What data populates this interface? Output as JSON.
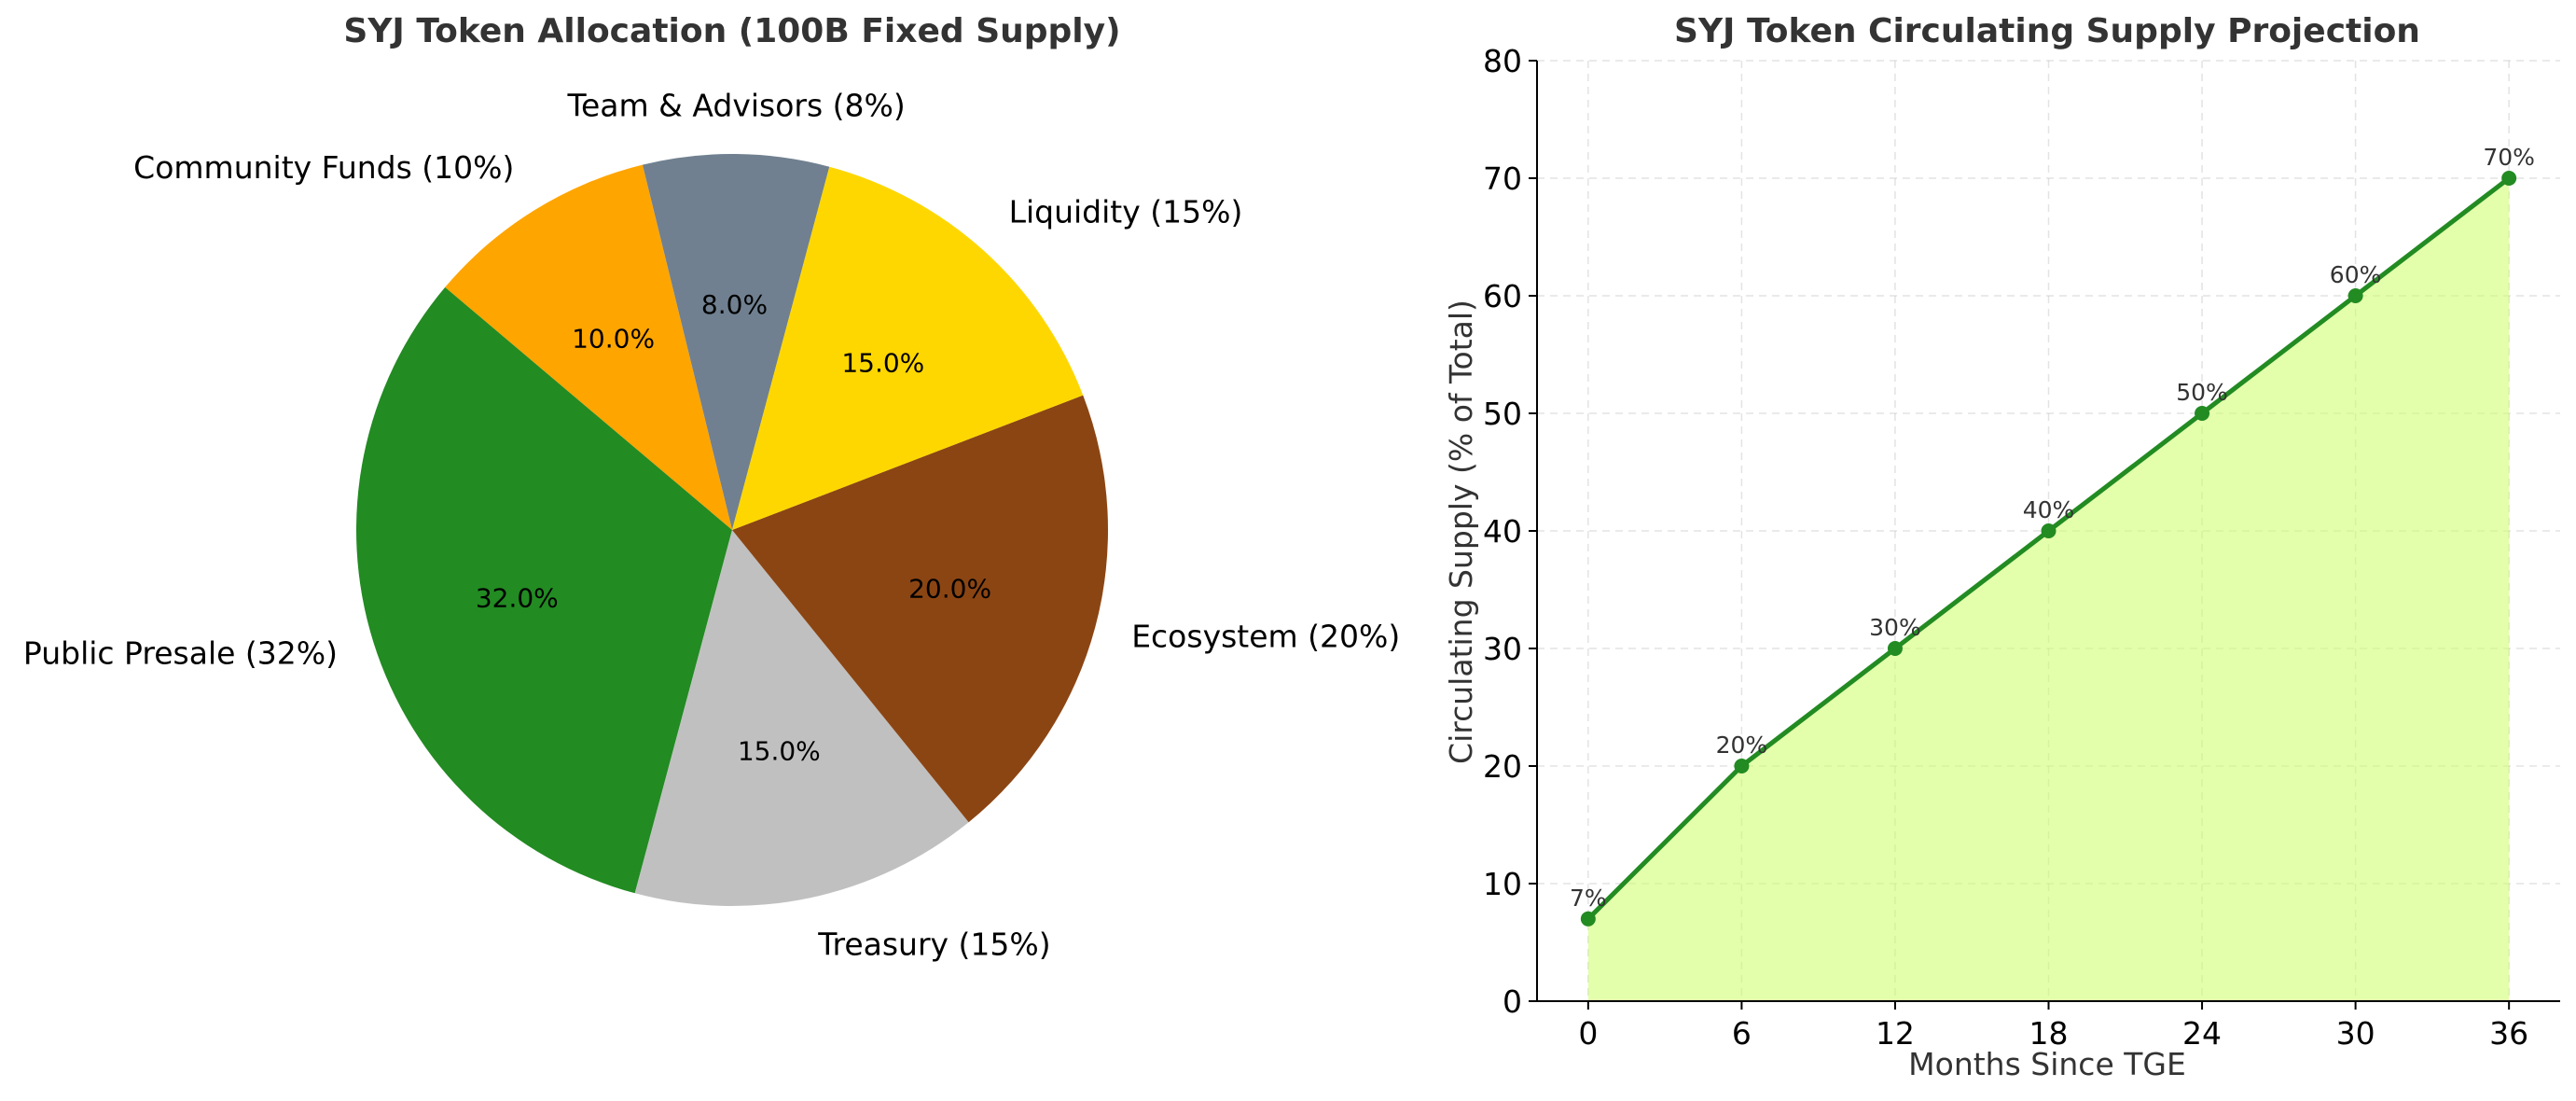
{
  "chart_data": [
    {
      "type": "pie",
      "title": "SYJ Token Allocation (100B Fixed Supply)",
      "slices": [
        {
          "label": "Team & Advisors (8%)",
          "value": 8,
          "pct_label": "8.0%",
          "color": "#708090"
        },
        {
          "label": "Community Funds (10%)",
          "value": 10,
          "pct_label": "10.0%",
          "color": "#FFA500"
        },
        {
          "label": "Public Presale (32%)",
          "value": 32,
          "pct_label": "32.0%",
          "color": "#228B22"
        },
        {
          "label": "Treasury (15%)",
          "value": 15,
          "pct_label": "15.0%",
          "color": "#C0C0C0"
        },
        {
          "label": "Ecosystem (20%)",
          "value": 20,
          "pct_label": "20.0%",
          "color": "#8B4513"
        },
        {
          "label": "Liquidity (15%)",
          "value": 15,
          "pct_label": "15.0%",
          "color": "#FFD700"
        }
      ],
      "start_angle_deg": 75,
      "direction": "counterclockwise"
    },
    {
      "type": "area",
      "title": "SYJ Token Circulating Supply Projection",
      "xlabel": "Months Since TGE",
      "ylabel": "Circulating Supply (% of Total)",
      "x": [
        0,
        6,
        12,
        18,
        24,
        30,
        36
      ],
      "y": [
        7,
        20,
        30,
        40,
        50,
        60,
        70
      ],
      "point_labels": [
        "7%",
        "20%",
        "30%",
        "40%",
        "50%",
        "60%",
        "70%"
      ],
      "xticks": [
        "0",
        "6",
        "12",
        "18",
        "24",
        "30",
        "36"
      ],
      "yticks": [
        "0",
        "10",
        "20",
        "30",
        "40",
        "50",
        "60",
        "70",
        "80"
      ],
      "xlim": [
        -2,
        38
      ],
      "ylim": [
        0,
        80
      ],
      "grid": true,
      "line_color": "#228B22",
      "fill_color": "#CCFF66"
    }
  ]
}
